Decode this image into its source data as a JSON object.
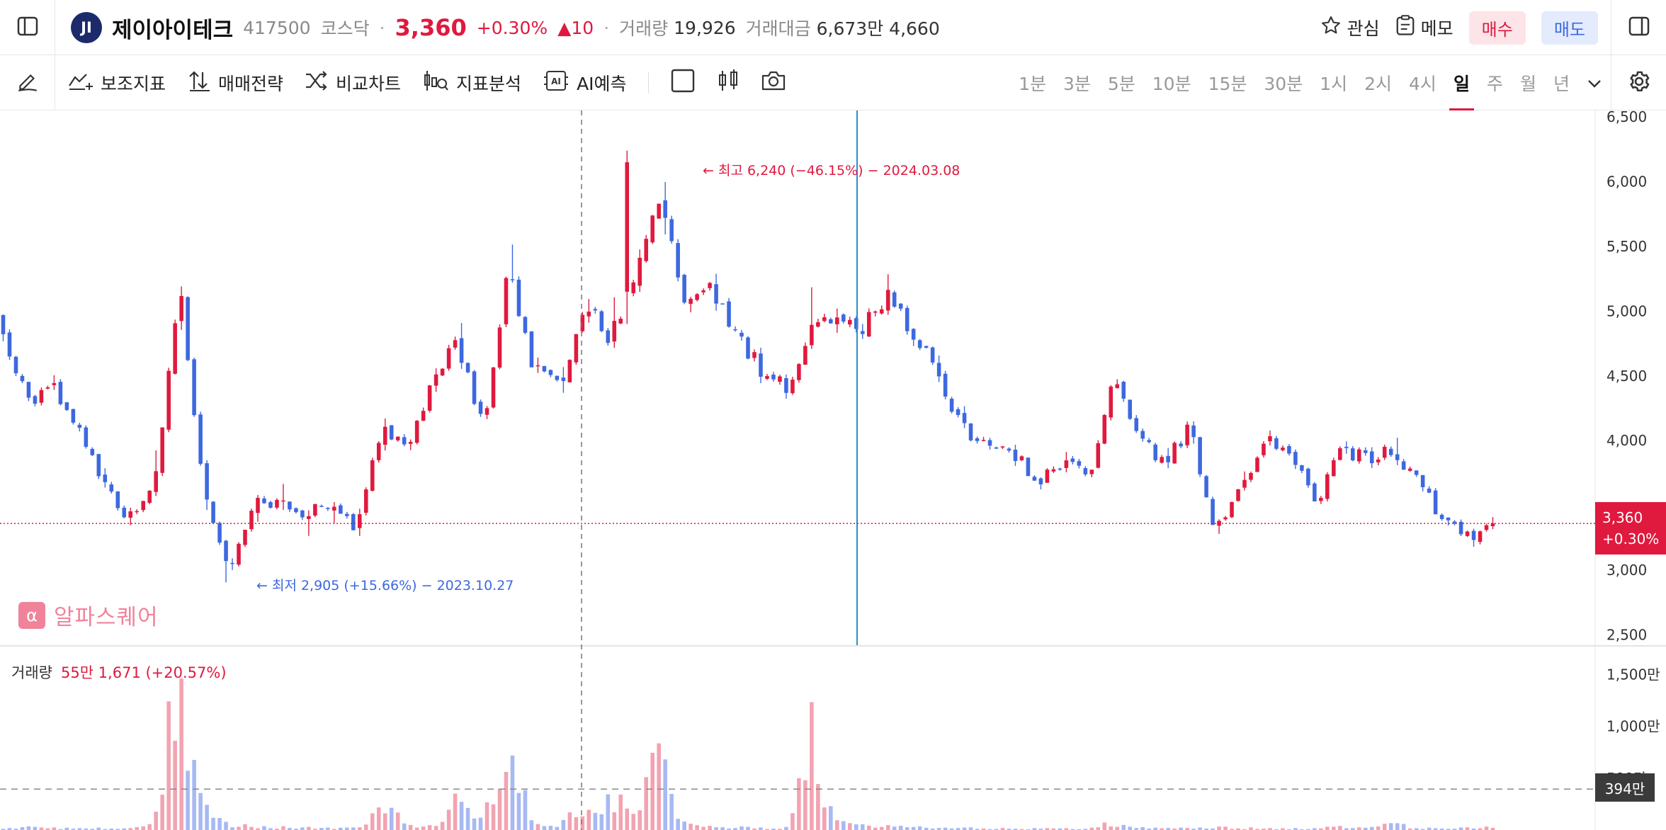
{
  "header": {
    "logo_text": "JI",
    "stock_name": "제이아이테크",
    "code": "417500",
    "market": "코스닥",
    "price": "3,360",
    "change_pct": "+0.30%",
    "change_abs": "▲10",
    "volume_label": "거래량",
    "volume_value": "19,926",
    "amount_label": "거래대금",
    "amount_value": "6,673만 4,660",
    "watch_label": "관심",
    "memo_label": "메모",
    "buy_label": "매수",
    "sell_label": "매도"
  },
  "toolbar": {
    "tools": [
      "보조지표",
      "매매전략",
      "비교차트",
      "지표분석",
      "AI예측"
    ],
    "intervals": [
      "1분",
      "3분",
      "5분",
      "10분",
      "15분",
      "30분",
      "1시",
      "2시",
      "4시",
      "일",
      "주",
      "월",
      "년"
    ],
    "active_interval": "일"
  },
  "colors": {
    "up": "#e0193e",
    "down": "#3d68df",
    "up_volume": "#f2a3b1",
    "down_volume": "#a7b9f3"
  },
  "watermark": {
    "text": "알파스퀘어"
  },
  "annotations": {
    "high": "← 최고 6,240 (−46.15%) − 2024.03.08",
    "low": "← 최저 2,905 (+15.66%) − 2023.10.27"
  },
  "price_tag": {
    "price": "3,360",
    "change": "+0.30%"
  },
  "volume_panel": {
    "label": "거래량",
    "value": "55만 1,671 (+20.57%)",
    "avg_tag": "394만"
  },
  "chart_data": {
    "type": "candlestick",
    "price_axis": {
      "ticks": [
        "6,500",
        "6,000",
        "5,500",
        "5,000",
        "4,500",
        "4,000",
        "3,000",
        "2,500"
      ],
      "range": [
        2420,
        6550
      ]
    },
    "volume_axis": {
      "ticks": [
        "1,500만",
        "1,000만",
        "500만"
      ],
      "range": [
        0,
        1700
      ]
    },
    "current_price": 3360,
    "high": 6240,
    "low": 2905,
    "volume_avg": 394,
    "ohlc_keypoints": [
      [
        4950,
        4950,
        4700,
        4800
      ],
      [
        4750,
        4750,
        4250,
        4300
      ],
      [
        4250,
        4550,
        4200,
        4450
      ],
      [
        4450,
        4450,
        4000,
        4050
      ],
      [
        4050,
        4150,
        3600,
        3650
      ],
      [
        3650,
        3700,
        3300,
        3400
      ],
      [
        3400,
        3950,
        3350,
        3700
      ],
      [
        3700,
        5250,
        3600,
        5150
      ],
      [
        5100,
        5150,
        3400,
        3550
      ],
      [
        3500,
        3550,
        2950,
        3000
      ],
      [
        3050,
        3600,
        2905,
        3550
      ],
      [
        3550,
        3800,
        3400,
        3500
      ],
      [
        3500,
        3600,
        3250,
        3450
      ],
      [
        3450,
        3550,
        3300,
        3500
      ],
      [
        3500,
        3550,
        3200,
        3300
      ],
      [
        3300,
        4200,
        3250,
        4100
      ],
      [
        4100,
        4100,
        3800,
        3900
      ],
      [
        3900,
        4550,
        3850,
        4500
      ],
      [
        4500,
        4950,
        4450,
        4750
      ],
      [
        4750,
        4750,
        4050,
        4100
      ],
      [
        4100,
        5850,
        4050,
        5300
      ],
      [
        5300,
        5400,
        4450,
        4550
      ],
      [
        4550,
        4650,
        4250,
        4400
      ],
      [
        4400,
        5250,
        4300,
        5050
      ],
      [
        5050,
        5400,
        4750,
        4800
      ],
      [
        4800,
        5300,
        4750,
        5200
      ],
      [
        5200,
        6240,
        5000,
        5900
      ],
      [
        5900,
        5900,
        5000,
        5100
      ],
      [
        5100,
        5250,
        5000,
        5150
      ],
      [
        5150,
        5150,
        4800,
        4850
      ],
      [
        4850,
        4900,
        4500,
        4550
      ],
      [
        4550,
        4600,
        4350,
        4400
      ],
      [
        4400,
        5350,
        4350,
        4850
      ],
      [
        4850,
        5050,
        4750,
        4950
      ],
      [
        4950,
        5050,
        4800,
        4850
      ],
      [
        4850,
        5400,
        4800,
        5150
      ],
      [
        5150,
        5150,
        4800,
        4850
      ],
      [
        4850,
        4950,
        4450,
        4500
      ],
      [
        4500,
        4600,
        4050,
        4100
      ],
      [
        4100,
        4100,
        3900,
        3950
      ],
      [
        3950,
        4000,
        3850,
        3900
      ],
      [
        3900,
        3900,
        3650,
        3700
      ],
      [
        3700,
        3950,
        3650,
        3850
      ],
      [
        3850,
        3850,
        3650,
        3700
      ],
      [
        3700,
        4500,
        3700,
        4450
      ],
      [
        4450,
        4450,
        3950,
        4000
      ],
      [
        4000,
        4150,
        3800,
        3850
      ],
      [
        3850,
        4150,
        3800,
        4100
      ],
      [
        4100,
        4100,
        3150,
        3300
      ],
      [
        3300,
        3700,
        3250,
        3600
      ],
      [
        3600,
        4050,
        3550,
        4000
      ],
      [
        4000,
        4000,
        3850,
        3900
      ],
      [
        3900,
        3900,
        3450,
        3500
      ],
      [
        3500,
        4000,
        3450,
        3950
      ],
      [
        3950,
        4050,
        3800,
        3850
      ],
      [
        3850,
        4180,
        3800,
        3950
      ],
      [
        3950,
        3950,
        3650,
        3700
      ],
      [
        3700,
        3700,
        3350,
        3400
      ],
      [
        3400,
        3400,
        3150,
        3250
      ],
      [
        3250,
        3400,
        3200,
        3360
      ]
    ],
    "volume_keypoints": [
      20,
      30,
      20,
      15,
      20,
      20,
      60,
      1700,
      200,
      60,
      40,
      30,
      25,
      20,
      20,
      300,
      60,
      40,
      330,
      100,
      900,
      60,
      40,
      280,
      300,
      300,
      720,
      60,
      40,
      30,
      20,
      20,
      1000,
      80,
      60,
      50,
      40,
      30,
      20,
      20,
      15,
      15,
      20,
      15,
      80,
      30,
      20,
      20,
      30,
      20,
      20,
      15,
      15,
      40,
      20,
      80,
      20,
      15,
      20,
      30
    ]
  }
}
